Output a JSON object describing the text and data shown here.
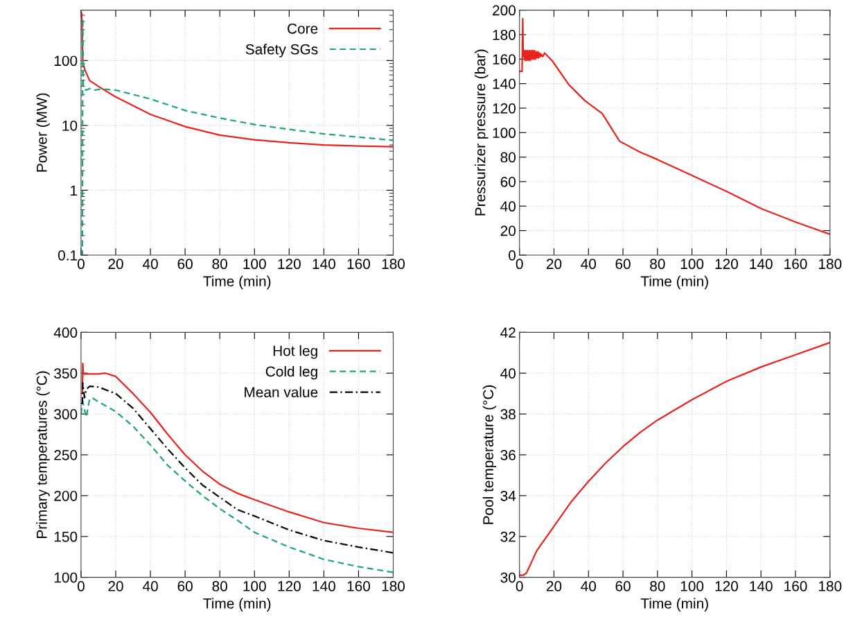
{
  "chart_data": [
    {
      "type": "line",
      "xlabel": "Time (min)",
      "ylabel": "Power (MW)",
      "log": "y",
      "xlim": [
        0,
        180
      ],
      "xticks": [
        0,
        20,
        40,
        60,
        80,
        100,
        120,
        140,
        160,
        180
      ],
      "ylim": [
        0.1,
        600
      ],
      "yticks": [
        0.1,
        1,
        10,
        100
      ],
      "grid": true,
      "legend": "top right",
      "series": [
        {
          "name": "Core",
          "color": "#e8231c",
          "line_style": "solid",
          "x": [
            0,
            0.3,
            0.5,
            1,
            2,
            5,
            10,
            20,
            40,
            60,
            80,
            100,
            120,
            140,
            160,
            180
          ],
          "values": [
            550,
            550,
            400,
            100,
            74,
            49,
            40,
            27.5,
            14.8,
            9.6,
            7.1,
            6.0,
            5.4,
            5.0,
            4.8,
            4.7
          ]
        },
        {
          "name": "Safety SGs",
          "color": "#1aa57a",
          "line_style": "dashed",
          "x": [
            0,
            0.8,
            1.0,
            1.3,
            3,
            5,
            8,
            10,
            15,
            20,
            40,
            60,
            80,
            100,
            120,
            140,
            160,
            180
          ],
          "values": [
            0.1,
            0.1,
            450,
            37,
            35,
            37,
            35,
            36,
            36,
            35,
            25.6,
            17,
            13,
            10.3,
            8.7,
            7.4,
            6.6,
            5.9
          ]
        }
      ]
    },
    {
      "type": "line",
      "xlabel": "Time (min)",
      "ylabel": "Pressurizer pressure (bar)",
      "xlim": [
        0,
        180
      ],
      "xticks": [
        0,
        20,
        40,
        60,
        80,
        100,
        120,
        140,
        160,
        180
      ],
      "ylim": [
        0,
        200
      ],
      "yticks": [
        0,
        20,
        40,
        60,
        80,
        100,
        120,
        140,
        160,
        180,
        200
      ],
      "grid": true,
      "series": [
        {
          "color": "#e8231c",
          "line_style": "solid",
          "x": [
            0,
            1.2,
            1.5,
            1.9,
            2.2,
            2.7,
            3.2,
            3.7,
            4.2,
            4.7,
            5.2,
            5.7,
            6.2,
            6.7,
            7.2,
            7.7,
            8.2,
            8.7,
            9.2,
            9.7,
            10.2,
            10.7,
            11.2,
            11.7,
            12.2,
            12.7,
            13.5,
            14.6,
            19,
            28.7,
            38,
            48,
            58,
            70,
            80,
            100,
            120,
            140,
            160,
            180
          ],
          "values": [
            150,
            150,
            150,
            193,
            162,
            167,
            159,
            167,
            159,
            167,
            159,
            167,
            159,
            167,
            160,
            167,
            160,
            167,
            160,
            166,
            161,
            166,
            161,
            165,
            162,
            164,
            162,
            165,
            158.6,
            139,
            126,
            115.5,
            93,
            84,
            78,
            65,
            52,
            38,
            27,
            17
          ]
        }
      ]
    },
    {
      "type": "line",
      "xlabel": "Time (min)",
      "ylabel": "Primary temperatures (°C)",
      "xlim": [
        0,
        180
      ],
      "xticks": [
        0,
        20,
        40,
        60,
        80,
        100,
        120,
        140,
        160,
        180
      ],
      "ylim": [
        100,
        400
      ],
      "yticks": [
        100,
        150,
        200,
        250,
        300,
        350,
        400
      ],
      "grid": true,
      "legend": "top right",
      "series": [
        {
          "name": "Hot leg",
          "color": "#e8231c",
          "line_style": "solid",
          "x": [
            0,
            0.8,
            1.0,
            1.3,
            3,
            6,
            10,
            14,
            20,
            30,
            40,
            50,
            60,
            70,
            80,
            90,
            100,
            120,
            140,
            160,
            180
          ],
          "values": [
            325,
            325,
            362,
            349,
            349,
            349,
            349,
            350,
            346,
            325,
            302,
            275,
            250,
            230,
            214,
            203,
            195,
            180,
            167,
            160,
            155
          ]
        },
        {
          "name": "Cold leg",
          "color": "#1aa57a",
          "line_style": "dashed",
          "x": [
            0,
            0.5,
            1,
            2,
            3,
            5,
            7,
            10,
            20,
            30,
            40,
            50,
            60,
            70,
            80,
            90,
            100,
            120,
            140,
            160,
            180
          ],
          "values": [
            300,
            310,
            315,
            305,
            296,
            319,
            319,
            315,
            303,
            285,
            262,
            237,
            218,
            200,
            184,
            170,
            155,
            137,
            122,
            113,
            106
          ]
        },
        {
          "name": "Mean value",
          "color": "#000000",
          "line_style": "dashdot",
          "x": [
            0,
            0.8,
            1,
            2,
            3,
            5,
            10,
            20,
            30,
            40,
            50,
            60,
            70,
            80,
            90,
            100,
            120,
            140,
            160,
            180
          ],
          "values": [
            313,
            313,
            338,
            320,
            330,
            334,
            333,
            325,
            307,
            282,
            257,
            234,
            213,
            198,
            183,
            175,
            158,
            145,
            137,
            130
          ]
        }
      ]
    },
    {
      "type": "line",
      "xlabel": "Time (min)",
      "ylabel": "Pool temperature (°C)",
      "xlim": [
        0,
        180
      ],
      "xticks": [
        0,
        20,
        40,
        60,
        80,
        100,
        120,
        140,
        160,
        180
      ],
      "ylim": [
        30,
        42
      ],
      "yticks": [
        30,
        32,
        34,
        36,
        38,
        40,
        42
      ],
      "grid": true,
      "series": [
        {
          "color": "#e8231c",
          "line_style": "solid",
          "x": [
            0,
            2,
            4,
            10,
            20,
            30,
            40,
            50,
            60,
            70,
            80,
            100,
            120,
            140,
            160,
            180
          ],
          "values": [
            30.1,
            30.1,
            30.2,
            31.3,
            32.5,
            33.7,
            34.7,
            35.6,
            36.4,
            37.1,
            37.7,
            38.7,
            39.6,
            40.3,
            40.9,
            41.5
          ]
        }
      ]
    }
  ]
}
